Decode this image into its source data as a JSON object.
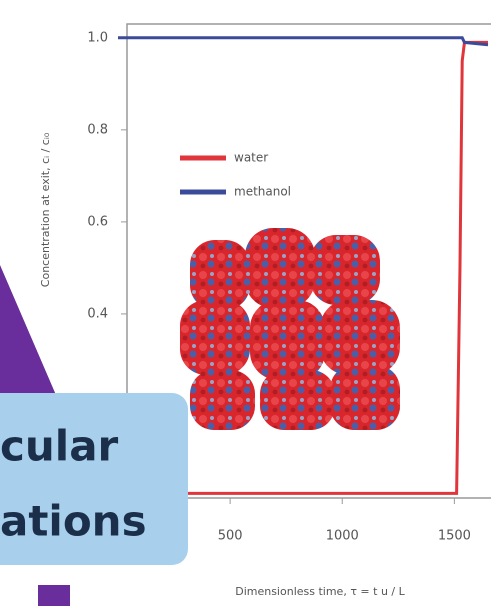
{
  "chart_data": {
    "type": "line",
    "y_label": "Concentration at exit, cᵢ / cᵢ₀",
    "x_label": "Dimensionless time, τ = t u / L",
    "x": [
      0,
      1510,
      1525,
      1535,
      1545,
      1650
    ],
    "series": [
      {
        "name": "water",
        "color": "#e0353a",
        "values": [
          0.01,
          0.01,
          0.5,
          0.95,
          0.99,
          0.99
        ]
      },
      {
        "name": "methanol",
        "color": "#3c4a9a",
        "values": [
          1,
          1,
          1,
          1,
          0.99,
          0.985
        ]
      }
    ],
    "xlim": [
      0,
      1650
    ],
    "ylim": [
      0,
      1.03
    ],
    "xticks": [
      500,
      1000,
      1500
    ],
    "yticks": [
      {
        "value": 1,
        "label": "1.0"
      },
      0.8,
      0.6,
      0.4
    ],
    "overlay_text": [
      "cular",
      "ations"
    ]
  }
}
